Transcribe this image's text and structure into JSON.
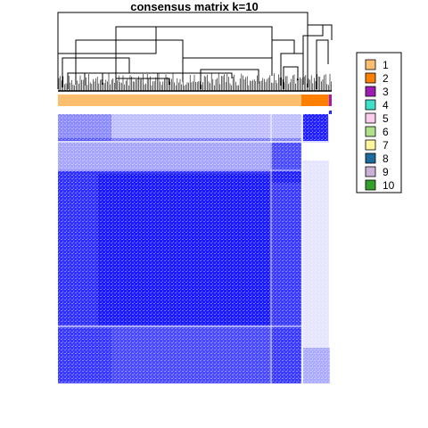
{
  "chart_data": {
    "type": "heatmap",
    "title": "consensus matrix k=10",
    "color_scale": {
      "low": "#FFFFFF",
      "high": "#0000FF",
      "range": [
        0,
        1
      ]
    },
    "dendrogram": "top",
    "clusters": [
      {
        "label": "1",
        "color": "#FDBF6F",
        "proportion": 0.88
      },
      {
        "label": "2",
        "color": "#FF7F00",
        "proportion": 0.1
      },
      {
        "label": "3",
        "color": "#9E1EB3",
        "proportion": 0.01
      }
    ],
    "legend": {
      "position": "right",
      "entries": [
        {
          "label": "1",
          "color": "#FDBF6F"
        },
        {
          "label": "2",
          "color": "#FF7F00"
        },
        {
          "label": "3",
          "color": "#9E1EB3"
        },
        {
          "label": "4",
          "color": "#40E0C8"
        },
        {
          "label": "5",
          "color": "#FBCDEA"
        },
        {
          "label": "6",
          "color": "#B2DF8A"
        },
        {
          "label": "7",
          "color": "#FFF59D"
        },
        {
          "label": "8",
          "color": "#1F6A9A"
        },
        {
          "label": "9",
          "color": "#CAB2D6"
        },
        {
          "label": "10",
          "color": "#33A02C"
        }
      ]
    }
  }
}
